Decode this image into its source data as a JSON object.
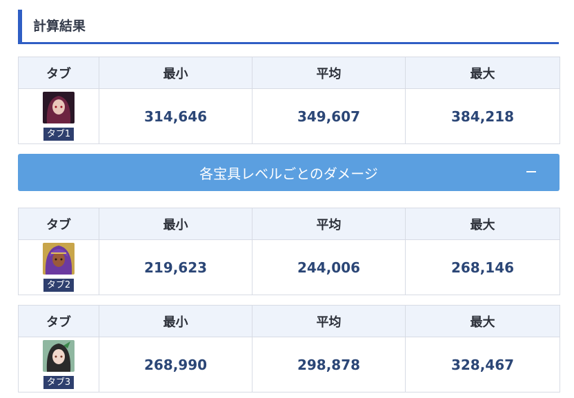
{
  "section_title": "計算結果",
  "headers": {
    "tab": "タブ",
    "min": "最小",
    "avg": "平均",
    "max": "最大"
  },
  "summary": {
    "tab_label": "タブ1",
    "min": "314,646",
    "avg": "349,607",
    "max": "384,218"
  },
  "toggle": {
    "label": "各宝具レベルごとのダメージ",
    "icon": "minus-icon"
  },
  "level_tables": [
    {
      "tab_label": "タブ2",
      "min": "219,623",
      "avg": "244,006",
      "max": "268,146"
    },
    {
      "tab_label": "タブ3",
      "min": "268,990",
      "avg": "298,878",
      "max": "328,467"
    }
  ],
  "colors": {
    "accent": "#2f5ec4",
    "toggle_bg": "#5b9fe0",
    "header_bg": "#eef3fb",
    "value_text": "#2b4676",
    "badge_bg": "#2e3f6e"
  }
}
